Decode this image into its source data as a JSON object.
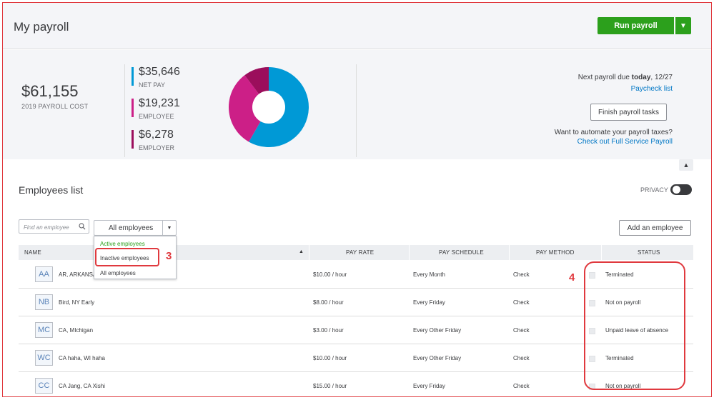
{
  "header": {
    "title": "My payroll",
    "run_payroll_label": "Run payroll"
  },
  "summary": {
    "total_amount": "$61,155",
    "total_label": "2019 PAYROLL COST",
    "stats": [
      {
        "amount": "$35,646",
        "label": "NET PAY",
        "color": "#0099d6"
      },
      {
        "amount": "$19,231",
        "label": "EMPLOYEE",
        "color": "#cc1f87"
      },
      {
        "amount": "$6,278",
        "label": "EMPLOYER",
        "color": "#9b0e5c"
      }
    ],
    "next_payroll_prefix": "Next payroll due",
    "next_payroll_bold": "today",
    "next_payroll_date": ", 12/27",
    "paycheck_link": "Paycheck list",
    "finish_label": "Finish payroll tasks",
    "automate_text": "Want to automate your payroll taxes?",
    "full_service_link": "Check out Full Service Payroll"
  },
  "employees": {
    "title": "Employees list",
    "privacy_label": "PRIVACY",
    "search_placeholder": "Find an employee",
    "filter_value": "All employees",
    "filter_options": [
      "Active employees",
      "Inactive employees",
      "All employees"
    ],
    "add_label": "Add an employee",
    "columns": {
      "name": "NAME",
      "pay_rate": "PAY RATE",
      "pay_schedule": "PAY SCHEDULE",
      "pay_method": "PAY METHOD",
      "status": "STATUS"
    },
    "rows": [
      {
        "initials": "AA",
        "name": "AR, ARKANSAS",
        "pay_rate": "$10.00 / hour",
        "pay_schedule": "Every Month",
        "pay_method": "Check",
        "status": "Terminated"
      },
      {
        "initials": "NB",
        "name": "Bird, NY Early",
        "pay_rate": "$8.00 / hour",
        "pay_schedule": "Every Friday",
        "pay_method": "Check",
        "status": "Not on payroll"
      },
      {
        "initials": "MC",
        "name": "CA, MIchigan",
        "pay_rate": "$3.00 / hour",
        "pay_schedule": "Every Other Friday",
        "pay_method": "Check",
        "status": "Unpaid leave of absence"
      },
      {
        "initials": "WC",
        "name": "CA haha, WI haha",
        "pay_rate": "$10.00 / hour",
        "pay_schedule": "Every Other Friday",
        "pay_method": "Check",
        "status": "Terminated"
      },
      {
        "initials": "CC",
        "name": "CA Jang, CA Xishi",
        "pay_rate": "$15.00 / hour",
        "pay_schedule": "Every Friday",
        "pay_method": "Check",
        "status": "Not on payroll"
      }
    ]
  },
  "annotations": {
    "step3": "3",
    "step4": "4"
  }
}
